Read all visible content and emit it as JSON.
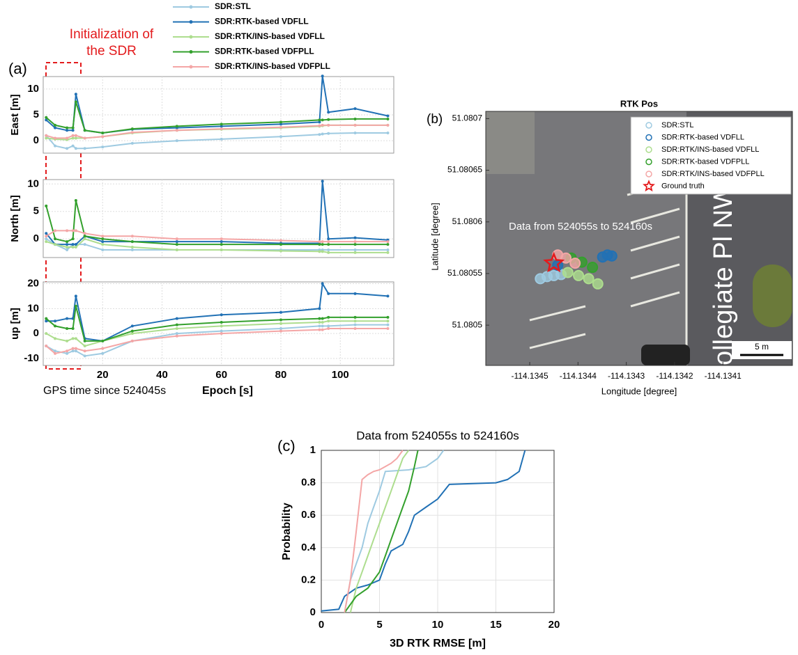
{
  "chart_data": [
    {
      "type": "line",
      "panel_label": "(a)",
      "annotation": [
        "Initialization of",
        "the SDR"
      ],
      "legend": "top",
      "x": [
        1,
        4,
        8,
        10,
        11,
        14,
        20,
        30,
        45,
        60,
        80,
        93,
        94,
        96,
        105,
        116
      ],
      "xlim": [
        0,
        118
      ],
      "xticks": [
        20,
        40,
        60,
        80,
        100
      ],
      "xlabel": "Epoch [s]",
      "xlabel_note": "GPS time since 524045s",
      "grid": true,
      "legend_series": [
        {
          "name": "SDR:STL",
          "color": "#9ecae1"
        },
        {
          "name": "SDR:RTK-based VDFLL",
          "color": "#2171b5"
        },
        {
          "name": "SDR:RTK/INS-based VDFLL",
          "color": "#addd8e"
        },
        {
          "name": "SDR:RTK-based VDFPLL",
          "color": "#33a02c"
        },
        {
          "name": "SDR:RTK/INS-based VDFPLL",
          "color": "#f4a6a6"
        }
      ],
      "panels": [
        {
          "ylabel": "East [m]",
          "ylim": [
            -2.4,
            12.4
          ],
          "yticks": [
            0,
            5,
            10
          ],
          "series": [
            {
              "values": [
                1,
                -1,
                -1.5,
                -1,
                -1.5,
                -1.5,
                -1.2,
                -0.5,
                0,
                0.3,
                0.8,
                1.2,
                1.3,
                1.4,
                1.5,
                1.5
              ]
            },
            {
              "values": [
                4,
                2.5,
                2,
                2,
                9,
                2,
                1.5,
                2.2,
                2.5,
                2.8,
                3.2,
                3.6,
                12.5,
                5.5,
                6.2,
                4.8
              ]
            },
            {
              "values": [
                0.5,
                0.3,
                0.2,
                0.5,
                0.5,
                0.5,
                0.8,
                1.5,
                2,
                2.2,
                2.5,
                2.8,
                2.9,
                3,
                3,
                3
              ]
            },
            {
              "values": [
                4.5,
                3,
                2.5,
                2.5,
                7.5,
                2,
                1.5,
                2.3,
                2.8,
                3.2,
                3.6,
                4,
                4,
                4.1,
                4.2,
                4.2
              ]
            },
            {
              "values": [
                1,
                0.5,
                0.5,
                1,
                1,
                0.5,
                0.8,
                1.6,
                2,
                2.3,
                2.6,
                2.9,
                3,
                3,
                3,
                3
              ]
            }
          ]
        },
        {
          "ylabel": "North [m]",
          "ylim": [
            -3.4,
            10.8
          ],
          "yticks": [
            0,
            5,
            10
          ],
          "series": [
            {
              "values": [
                0,
                -1,
                -2,
                -1,
                -1,
                -1,
                -2,
                -2,
                -2,
                -2,
                -2,
                -2,
                -2,
                -2,
                -2,
                -2
              ]
            },
            {
              "values": [
                1,
                -1,
                -1,
                -1,
                -1,
                0.5,
                -0.5,
                -0.5,
                -0.5,
                -0.5,
                -0.8,
                -0.8,
                10.5,
                0,
                0.2,
                -0.2
              ]
            },
            {
              "values": [
                -0.5,
                -1,
                -1.5,
                -1.5,
                -1.5,
                0,
                -1,
                -1.5,
                -2,
                -2,
                -2.2,
                -2.3,
                -2.3,
                -2.5,
                -2.5,
                -2.5
              ]
            },
            {
              "values": [
                6,
                0,
                -0.5,
                0,
                7,
                0.5,
                0,
                -0.5,
                -1,
                -1,
                -1,
                -1,
                -1,
                -1,
                -1,
                -1
              ]
            },
            {
              "values": [
                0.5,
                1.5,
                1.5,
                1.5,
                1.5,
                1,
                0.5,
                0.5,
                0,
                0,
                -0.3,
                -0.5,
                -0.5,
                -0.5,
                -0.5,
                -0.5
              ]
            }
          ]
        },
        {
          "ylabel": "up [m]",
          "ylim": [
            -12.8,
            20.7
          ],
          "yticks": [
            -10,
            0,
            10,
            20
          ],
          "series": [
            {
              "values": [
                -5,
                -7,
                -8,
                -7,
                -7,
                -9,
                -8,
                -3,
                0,
                1,
                2,
                3,
                3,
                3,
                3.5,
                3.5
              ]
            },
            {
              "values": [
                5,
                5,
                6,
                6,
                15,
                -2,
                -3,
                3,
                6,
                7.5,
                8.5,
                10,
                20,
                16,
                16,
                15
              ]
            },
            {
              "values": [
                0,
                -2,
                -3,
                -2,
                -2,
                -5,
                -3,
                0,
                2,
                3,
                4,
                4.5,
                4.5,
                5,
                5,
                5
              ]
            },
            {
              "values": [
                6,
                3,
                2,
                2,
                11,
                -3,
                -3,
                1,
                3.5,
                4.5,
                5.5,
                6,
                6,
                6.5,
                6.5,
                6.5
              ]
            },
            {
              "values": [
                -5,
                -8,
                -7,
                -6,
                -6,
                -7,
                -6,
                -3,
                -1,
                0,
                1,
                1.5,
                1.5,
                2,
                2,
                2
              ]
            }
          ]
        }
      ]
    },
    {
      "type": "scatter",
      "panel_label": "(b)",
      "title": "RTK Pos",
      "xlabel": "Longitude [degree]",
      "ylabel": "Latitude [degree]",
      "annotation": "Data from 524055s to 524160s",
      "street_label": "ollegiate Pl NW",
      "scale_label": "5 m",
      "legend": "upper right",
      "xlim": [
        -114.134591,
        -114.133956
      ],
      "ylim": [
        51.080461,
        51.080707
      ],
      "xticks": [
        -114.1345,
        -114.1344,
        -114.1343,
        -114.1342,
        -114.1341
      ],
      "yticks": [
        51.0805,
        51.08055,
        51.0806,
        51.08065,
        51.0807
      ],
      "series": [
        {
          "name": "SDR:STL",
          "color": "#9ecae1",
          "marker": "circle",
          "x": [
            -114.134478,
            -114.134464,
            -114.13445,
            -114.134435
          ],
          "values": [
            51.080545,
            51.080547,
            51.080548,
            51.080549
          ]
        },
        {
          "name": "SDR:RTK-based VDFLL",
          "color": "#2171b5",
          "marker": "circle",
          "x": [
            -114.134442,
            -114.134349,
            -114.134339,
            -114.13433
          ],
          "values": [
            51.080558,
            51.080566,
            51.080568,
            51.080567
          ]
        },
        {
          "name": "SDR:RTK/INS-based VDFLL",
          "color": "#addd8e",
          "marker": "circle",
          "x": [
            -114.134421,
            -114.134399,
            -114.134378,
            -114.134359
          ],
          "values": [
            51.080551,
            51.080548,
            51.080545,
            51.08054
          ]
        },
        {
          "name": "SDR:RTK-based VDFPLL",
          "color": "#33a02c",
          "marker": "circle",
          "x": [
            -114.134414,
            -114.134392,
            -114.13437
          ],
          "values": [
            51.080565,
            51.080561,
            51.080556
          ]
        },
        {
          "name": "SDR:RTK/INS-based VDFPLL",
          "color": "#f4a6a6",
          "marker": "circle",
          "x": [
            -114.134442,
            -114.134425,
            -114.134406
          ],
          "values": [
            51.080568,
            51.080565,
            51.08056
          ]
        },
        {
          "name": "Ground truth",
          "color": "#e41a1c",
          "marker": "star",
          "x": [
            -114.13445
          ],
          "values": [
            51.08056
          ]
        }
      ]
    },
    {
      "type": "line",
      "panel_label": "(c)",
      "title": "Data from 524055s to 524160s",
      "xlabel": "3D RTK RMSE [m]",
      "ylabel": "Probability",
      "xlim": [
        0,
        20
      ],
      "ylim": [
        0,
        1
      ],
      "xticks": [
        0,
        5,
        10,
        15,
        20
      ],
      "yticks": [
        0,
        0.2,
        0.4,
        0.6,
        0.8,
        1
      ],
      "grid": true,
      "series": [
        {
          "color": "#9ecae1",
          "x": [
            2,
            2.5,
            3,
            3.5,
            4,
            4.5,
            5,
            5.5,
            7.5,
            9,
            10,
            10.5
          ],
          "values": [
            0,
            0.2,
            0.3,
            0.4,
            0.55,
            0.65,
            0.75,
            0.87,
            0.88,
            0.9,
            0.95,
            1
          ]
        },
        {
          "color": "#2171b5",
          "x": [
            0,
            1.5,
            2,
            3,
            4,
            5,
            5.5,
            6,
            7,
            7.5,
            8,
            9,
            10,
            11,
            15,
            16,
            17,
            17.5
          ],
          "values": [
            0.01,
            0.02,
            0.1,
            0.15,
            0.17,
            0.2,
            0.3,
            0.38,
            0.42,
            0.5,
            0.6,
            0.65,
            0.7,
            0.79,
            0.8,
            0.82,
            0.87,
            1
          ]
        },
        {
          "color": "#addd8e",
          "x": [
            2.5,
            3,
            3.5,
            4,
            4.5,
            5,
            5.5,
            6,
            6.5,
            7,
            7.5
          ],
          "values": [
            0,
            0.15,
            0.25,
            0.35,
            0.45,
            0.55,
            0.65,
            0.75,
            0.85,
            0.95,
            1
          ]
        },
        {
          "color": "#33a02c",
          "x": [
            2,
            3,
            4,
            5,
            5.5,
            6,
            6.5,
            7,
            7.5,
            8,
            8.3
          ],
          "values": [
            0,
            0.1,
            0.15,
            0.25,
            0.35,
            0.45,
            0.55,
            0.65,
            0.75,
            0.9,
            1
          ]
        },
        {
          "color": "#f4a6a6",
          "x": [
            2,
            2.5,
            3,
            3.5,
            4,
            4.5,
            5,
            5.5,
            6,
            6.5,
            7
          ],
          "values": [
            0,
            0.2,
            0.5,
            0.82,
            0.85,
            0.87,
            0.88,
            0.9,
            0.92,
            0.95,
            1
          ]
        }
      ]
    }
  ]
}
